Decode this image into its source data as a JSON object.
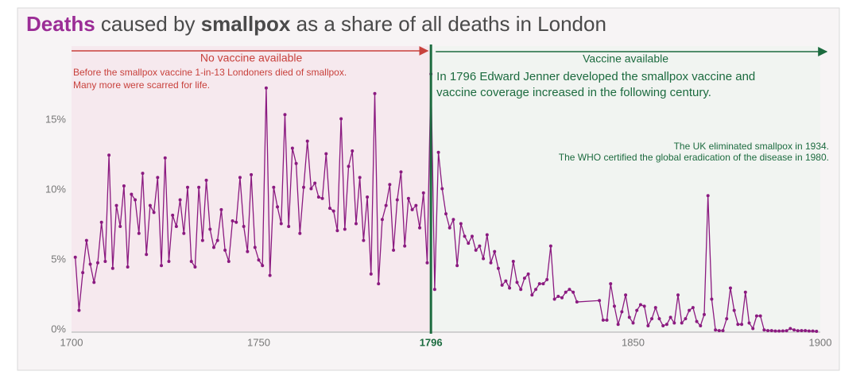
{
  "chart_data": {
    "type": "line",
    "title_parts": [
      "Deaths",
      " caused by ",
      "smallpox",
      " as a share of all deaths in London"
    ],
    "annotations": {
      "before_header": "No vaccine available",
      "before_lines": [
        "Before the smallpox vaccine 1-in-13 Londoners died of smallpox.",
        "Many more were scarred for life."
      ],
      "after_header": "Vaccine available",
      "after_lines": [
        "In 1796 Edward Jenner developed the smallpox vaccine and",
        "vaccine coverage increased in the following century."
      ],
      "end_lines": [
        "The UK eliminated smallpox in 1934.",
        "The WHO certified the global eradication of the disease in 1980."
      ]
    },
    "vaccine_year": 1796,
    "x": [
      1701,
      1702,
      1703,
      1704,
      1705,
      1706,
      1707,
      1708,
      1709,
      1710,
      1711,
      1712,
      1713,
      1714,
      1715,
      1716,
      1717,
      1718,
      1719,
      1720,
      1721,
      1722,
      1723,
      1724,
      1725,
      1726,
      1727,
      1728,
      1729,
      1730,
      1731,
      1732,
      1733,
      1734,
      1735,
      1736,
      1737,
      1738,
      1739,
      1740,
      1741,
      1742,
      1743,
      1744,
      1745,
      1746,
      1747,
      1748,
      1749,
      1750,
      1751,
      1752,
      1753,
      1754,
      1755,
      1756,
      1757,
      1758,
      1759,
      1760,
      1761,
      1762,
      1763,
      1764,
      1765,
      1766,
      1767,
      1768,
      1769,
      1770,
      1771,
      1772,
      1773,
      1774,
      1775,
      1776,
      1777,
      1778,
      1779,
      1780,
      1781,
      1782,
      1783,
      1784,
      1785,
      1786,
      1787,
      1788,
      1789,
      1790,
      1791,
      1792,
      1793,
      1794,
      1795,
      1796,
      1797,
      1798,
      1799,
      1800,
      1801,
      1802,
      1803,
      1804,
      1805,
      1806,
      1807,
      1808,
      1809,
      1810,
      1811,
      1812,
      1813,
      1814,
      1815,
      1816,
      1817,
      1818,
      1819,
      1820,
      1821,
      1822,
      1823,
      1824,
      1825,
      1826,
      1827,
      1828,
      1829,
      1830,
      1831,
      1832,
      1833,
      1834,
      1835,
      1841,
      1842,
      1843,
      1844,
      1845,
      1846,
      1847,
      1848,
      1849,
      1850,
      1851,
      1852,
      1853,
      1854,
      1855,
      1856,
      1857,
      1858,
      1859,
      1860,
      1861,
      1862,
      1863,
      1864,
      1865,
      1866,
      1867,
      1868,
      1869,
      1870,
      1871,
      1872,
      1873,
      1874,
      1875,
      1876,
      1877,
      1878,
      1879,
      1880,
      1881,
      1882,
      1883,
      1884,
      1885,
      1886,
      1887,
      1888,
      1889,
      1890,
      1891,
      1892,
      1893,
      1894,
      1895,
      1896,
      1897,
      1898,
      1899
    ],
    "series": [
      {
        "color": "#8b1a80",
        "values": [
          5.3,
          1.5,
          4.2,
          6.5,
          4.8,
          3.5,
          4.9,
          7.8,
          5.0,
          12.6,
          4.5,
          9.0,
          7.5,
          10.4,
          4.6,
          9.8,
          9.4,
          7.0,
          11.3,
          5.5,
          9.0,
          8.5,
          11.0,
          4.7,
          12.4,
          5.0,
          8.3,
          7.5,
          9.4,
          7.0,
          10.3,
          5.0,
          4.6,
          10.3,
          6.5,
          10.8,
          7.3,
          6.0,
          6.5,
          8.7,
          5.8,
          5.0,
          7.9,
          7.8,
          11.0,
          7.5,
          5.7,
          11.2,
          6.0,
          5.1,
          4.7,
          17.4,
          4.0,
          10.3,
          8.9,
          7.7,
          15.5,
          7.5,
          13.1,
          12.0,
          7.0,
          10.3,
          13.6,
          10.2,
          10.6,
          9.6,
          9.5,
          12.7,
          8.8,
          8.6,
          7.2,
          15.2,
          7.3,
          11.8,
          12.9,
          7.7,
          11.0,
          6.5,
          9.6,
          4.1,
          17.0,
          3.4,
          8.0,
          9.0,
          10.5,
          5.8,
          9.4,
          11.4,
          6.1,
          9.5,
          8.7,
          9.0,
          7.4,
          9.9,
          4.9,
          18.4,
          3.0,
          12.8,
          10.2,
          8.4,
          7.4,
          8.0,
          4.7,
          7.7,
          6.8,
          6.3,
          6.8,
          5.8,
          6.1,
          5.2,
          6.9,
          4.9,
          5.7,
          4.5,
          3.3,
          3.6,
          3.1,
          5.0,
          3.5,
          3.0,
          3.8,
          4.1,
          2.6,
          3.0,
          3.4,
          3.4,
          3.7,
          6.1,
          2.3,
          2.5,
          2.4,
          2.8,
          3.0,
          2.8,
          2.1,
          2.2,
          0.8,
          0.8,
          3.4,
          1.8,
          0.5,
          1.4,
          2.6,
          1.0,
          0.6,
          1.5,
          1.9,
          1.8,
          0.4,
          0.9,
          1.7,
          0.9,
          0.4,
          0.5,
          1.0,
          0.6,
          2.6,
          0.6,
          0.9,
          1.5,
          1.7,
          0.7,
          0.4,
          1.2,
          9.7,
          2.3,
          0.1,
          0.05,
          0.05,
          0.9,
          3.1,
          1.5,
          0.5,
          0.5,
          2.8,
          0.6,
          0.2,
          1.1,
          1.1,
          0.1,
          0.05,
          0.05,
          0.02,
          0.02,
          0.03,
          0.04,
          0.2,
          0.1,
          0.04,
          0.05,
          0.05,
          0.02,
          0.02,
          0
        ]
      }
    ],
    "xlim": [
      1700,
      1900
    ],
    "xticks": [
      1700,
      1750,
      1796,
      1850,
      1900
    ],
    "ylim": [
      0,
      20
    ],
    "yticks": [
      {
        "value": 0,
        "label": "0%"
      },
      {
        "value": 5,
        "label": "5%"
      },
      {
        "value": 10,
        "label": "10%"
      },
      {
        "value": 15,
        "label": "15%"
      }
    ],
    "grid": false
  }
}
